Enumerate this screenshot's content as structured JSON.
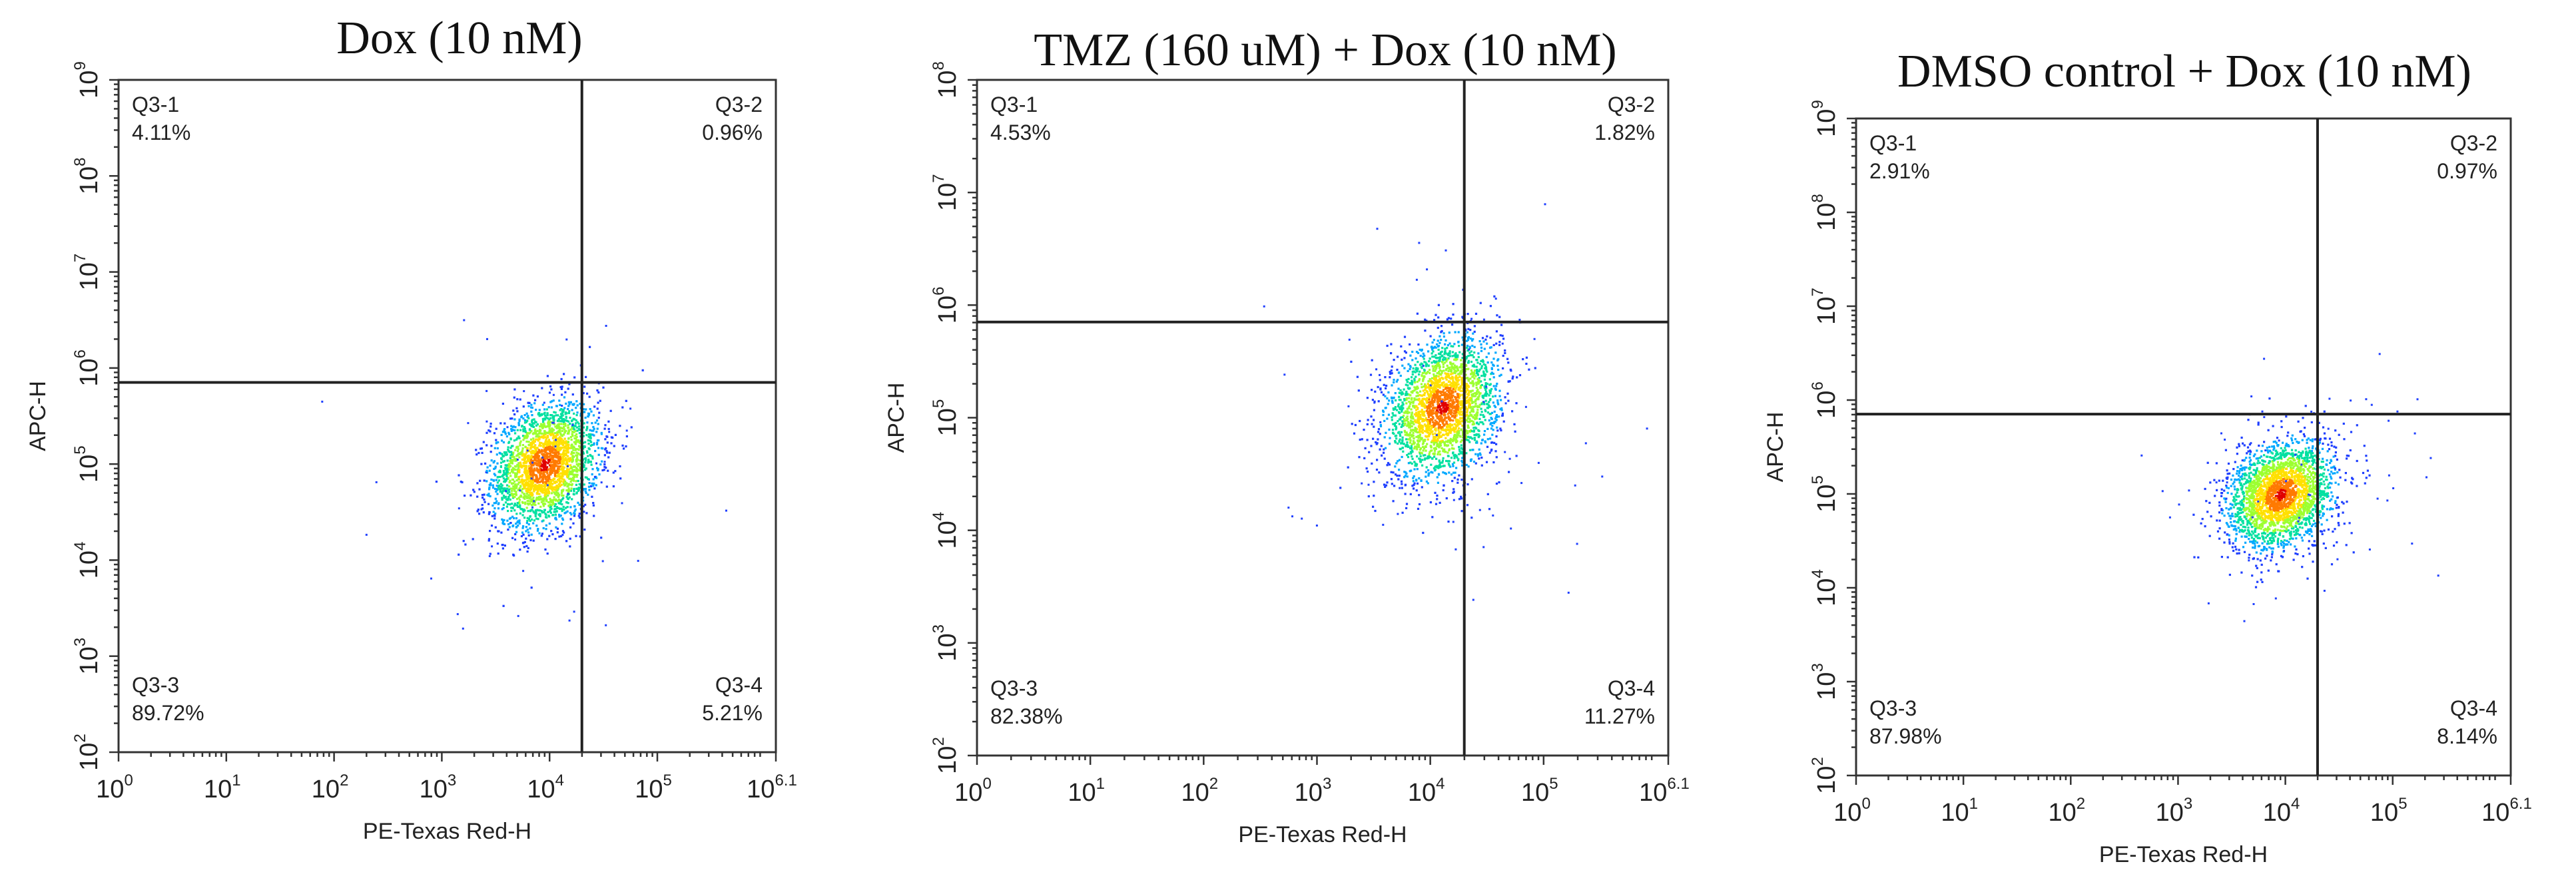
{
  "chart_data": [
    {
      "type": "scatter",
      "title": "Dox (10 nM)",
      "xlabel": "PE-Texas Red-H",
      "ylabel": "APC-H",
      "x_scale": "log10",
      "y_scale": "log10",
      "xlim_log10": [
        0,
        6.1
      ],
      "ylim_log10": [
        2,
        9
      ],
      "x_ticks": [
        {
          "base": "10",
          "exp": "0",
          "v": 0
        },
        {
          "base": "10",
          "exp": "1",
          "v": 1
        },
        {
          "base": "10",
          "exp": "2",
          "v": 2
        },
        {
          "base": "10",
          "exp": "3",
          "v": 3
        },
        {
          "base": "10",
          "exp": "4",
          "v": 4
        },
        {
          "base": "10",
          "exp": "5",
          "v": 5
        },
        {
          "base": "10",
          "exp": "6.1",
          "v": 6.1
        }
      ],
      "y_ticks": [
        {
          "base": "10",
          "exp": "2",
          "v": 2
        },
        {
          "base": "10",
          "exp": "3",
          "v": 3
        },
        {
          "base": "10",
          "exp": "4",
          "v": 4
        },
        {
          "base": "10",
          "exp": "5",
          "v": 5
        },
        {
          "base": "10",
          "exp": "6",
          "v": 6
        },
        {
          "base": "10",
          "exp": "7",
          "v": 7
        },
        {
          "base": "10",
          "exp": "8",
          "v": 8
        },
        {
          "base": "10",
          "exp": "9",
          "v": 9
        }
      ],
      "gate_log10": {
        "x": 4.3,
        "y": 5.85
      },
      "quadrants": [
        {
          "name": "Q3-1",
          "percent": "4.11%",
          "position": "top-left"
        },
        {
          "name": "Q3-2",
          "percent": "0.96%",
          "position": "top-right"
        },
        {
          "name": "Q3-3",
          "percent": "89.72%",
          "position": "bottom-left"
        },
        {
          "name": "Q3-4",
          "percent": "5.21%",
          "position": "bottom-right"
        }
      ],
      "population": {
        "center_log10": [
          3.95,
          5.0
        ],
        "spread_log10": [
          0.25,
          0.32
        ],
        "events": 2600
      }
    },
    {
      "type": "scatter",
      "title": "TMZ (160 uM) + Dox (10 nM)",
      "xlabel": "PE-Texas Red-H",
      "ylabel": "APC-H",
      "x_scale": "log10",
      "y_scale": "log10",
      "xlim_log10": [
        0,
        6.1
      ],
      "ylim_log10": [
        2,
        8
      ],
      "x_ticks": [
        {
          "base": "10",
          "exp": "0",
          "v": 0
        },
        {
          "base": "10",
          "exp": "1",
          "v": 1
        },
        {
          "base": "10",
          "exp": "2",
          "v": 2
        },
        {
          "base": "10",
          "exp": "3",
          "v": 3
        },
        {
          "base": "10",
          "exp": "4",
          "v": 4
        },
        {
          "base": "10",
          "exp": "5",
          "v": 5
        },
        {
          "base": "10",
          "exp": "6.1",
          "v": 6.1
        }
      ],
      "y_ticks": [
        {
          "base": "10",
          "exp": "2",
          "v": 2
        },
        {
          "base": "10",
          "exp": "3",
          "v": 3
        },
        {
          "base": "10",
          "exp": "4",
          "v": 4
        },
        {
          "base": "10",
          "exp": "5",
          "v": 5
        },
        {
          "base": "10",
          "exp": "6",
          "v": 6
        },
        {
          "base": "10",
          "exp": "7",
          "v": 7
        },
        {
          "base": "10",
          "exp": "8",
          "v": 8
        }
      ],
      "gate_log10": {
        "x": 4.3,
        "y": 5.85
      },
      "quadrants": [
        {
          "name": "Q3-1",
          "percent": "4.53%",
          "position": "top-left"
        },
        {
          "name": "Q3-2",
          "percent": "1.82%",
          "position": "top-right"
        },
        {
          "name": "Q3-3",
          "percent": "82.38%",
          "position": "bottom-left"
        },
        {
          "name": "Q3-4",
          "percent": "11.27%",
          "position": "bottom-right"
        }
      ],
      "population": {
        "center_log10": [
          4.1,
          5.1
        ],
        "spread_log10": [
          0.25,
          0.3
        ],
        "events": 2600
      }
    },
    {
      "type": "scatter",
      "title": "DMSO control + Dox (10 nM)",
      "xlabel": "PE-Texas Red-H",
      "ylabel": "APC-H",
      "x_scale": "log10",
      "y_scale": "log10",
      "xlim_log10": [
        0,
        6.1
      ],
      "ylim_log10": [
        2,
        9
      ],
      "x_ticks": [
        {
          "base": "10",
          "exp": "0",
          "v": 0
        },
        {
          "base": "10",
          "exp": "1",
          "v": 1
        },
        {
          "base": "10",
          "exp": "2",
          "v": 2
        },
        {
          "base": "10",
          "exp": "3",
          "v": 3
        },
        {
          "base": "10",
          "exp": "4",
          "v": 4
        },
        {
          "base": "10",
          "exp": "5",
          "v": 5
        },
        {
          "base": "10",
          "exp": "6.1",
          "v": 6.1
        }
      ],
      "y_ticks": [
        {
          "base": "10",
          "exp": "2",
          "v": 2
        },
        {
          "base": "10",
          "exp": "3",
          "v": 3
        },
        {
          "base": "10",
          "exp": "4",
          "v": 4
        },
        {
          "base": "10",
          "exp": "5",
          "v": 5
        },
        {
          "base": "10",
          "exp": "6",
          "v": 6
        },
        {
          "base": "10",
          "exp": "7",
          "v": 7
        },
        {
          "base": "10",
          "exp": "8",
          "v": 8
        },
        {
          "base": "10",
          "exp": "9",
          "v": 9
        }
      ],
      "gate_log10": {
        "x": 4.3,
        "y": 5.85
      },
      "quadrants": [
        {
          "name": "Q3-1",
          "percent": "2.91%",
          "position": "top-left"
        },
        {
          "name": "Q3-2",
          "percent": "0.97%",
          "position": "top-right"
        },
        {
          "name": "Q3-3",
          "percent": "87.98%",
          "position": "bottom-left"
        },
        {
          "name": "Q3-4",
          "percent": "8.14%",
          "position": "bottom-right"
        }
      ],
      "population": {
        "center_log10": [
          3.95,
          5.0
        ],
        "spread_log10": [
          0.25,
          0.28
        ],
        "events": 2600
      }
    }
  ],
  "density_colors": [
    "#1f3fff",
    "#00a8ff",
    "#00e0a0",
    "#9cff30",
    "#ffe000",
    "#ff7a00",
    "#e00000"
  ]
}
